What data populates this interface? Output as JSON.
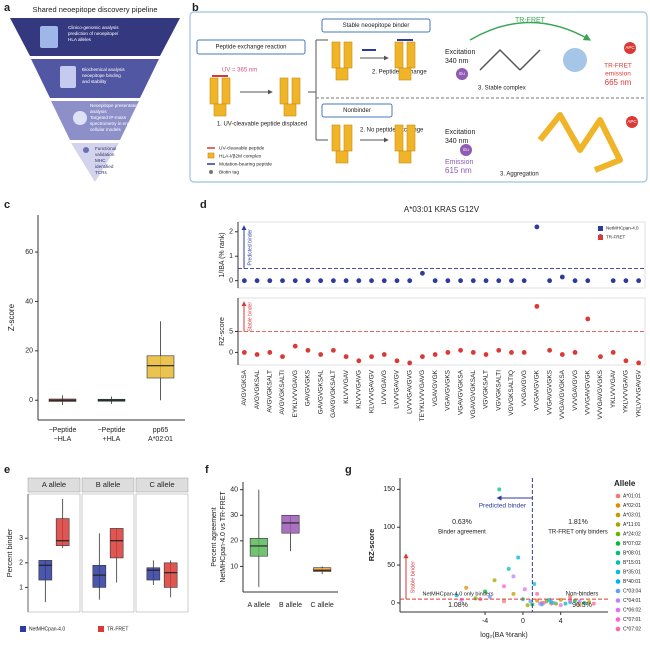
{
  "panel_labels": [
    "a",
    "b",
    "c",
    "d",
    "e",
    "f",
    "g"
  ],
  "pipeline": {
    "title": "Shared neoepitope discovery pipeline",
    "tiers": [
      [
        "Clinico-genomic analysis",
        "prediction of neoepitope/",
        "HLA alleles"
      ],
      [
        "Biochemical analysis",
        "neoepitope binding",
        "and stability"
      ],
      [
        "Neoepitope presentation",
        "analysis",
        "Targeted IP-mass",
        "spectrometry in engineered",
        "cellular models"
      ],
      [
        "Functional",
        "validation",
        "MHC",
        "identified",
        "TCRs"
      ]
    ]
  },
  "assay": {
    "exchange": "Peptide exchange reaction",
    "uv": "UV = 365 nm",
    "displaced": "1. UV-cleavable peptide displaced",
    "stable": "Stable neoepitope binder",
    "exchange_step": "2. Peptide exchange",
    "excitation": [
      "Excitation",
      "340 nm"
    ],
    "trfret": "TR-FRET",
    "emission665": [
      "TR-FRET",
      "emission",
      "665 nm"
    ],
    "complex": "3. Stable complex",
    "nonbinder": "Nonbinder",
    "no_exchange": "2. No peptide exchange",
    "emission615": [
      "Emission",
      "615 nm"
    ],
    "aggregation": "3. Aggregation",
    "apc": "APC",
    "eu": "Eu",
    "legend": [
      "UV-cleavable peptide",
      "HLA-I/β2M complex",
      "Mutation-bearing peptide",
      "Biotin tag"
    ]
  },
  "chart_data": [
    {
      "type": "box",
      "ylabel": "Z-score",
      "ylim": [
        -8,
        75
      ],
      "yticks": [
        0,
        20,
        40,
        60
      ],
      "categories": [
        [
          "−Peptide",
          "−HLA"
        ],
        [
          "−Peptide",
          "+HLA"
        ],
        [
          "pp65",
          "A*02:01"
        ]
      ],
      "boxes": [
        {
          "color": "#e04a4a",
          "min": -2,
          "q1": -0.5,
          "median": 0,
          "q3": 0.5,
          "max": 2
        },
        {
          "color": "#2a9d8f",
          "min": -1.5,
          "q1": -0.4,
          "median": 0,
          "q3": 0.4,
          "max": 1.5
        },
        {
          "color": "#e8b931",
          "min": 0,
          "q1": 9,
          "median": 14,
          "q3": 18,
          "max": 32
        }
      ]
    },
    {
      "type": "dot_strip",
      "title": "A*03:01 KRAS G12V",
      "categories": [
        "AVGVGKSA",
        "AVGVGKSAL",
        "AVGVGKSALT",
        "AVGVGKSALTI",
        "EYKLVVVGAVG",
        "GAVGVGKS",
        "GAVGVGKSAL",
        "GAVGVGKSALT",
        "KLVVVGAV",
        "KLVVVGAVG",
        "KLVVVGAVGV",
        "LVVVGAVG",
        "LVVVGAVGV",
        "LVVVGAVGVG",
        "TEYKLVVVGAVG",
        "VGAVGVGK",
        "VGAVGVGKS",
        "VGAVGVGKSA",
        "VGAVGVGKSAL",
        "VGVGKSALT",
        "VGVGKSALTI",
        "VGVGKSALTIQ",
        "VVGAVGVG",
        "VVGAVGVGK",
        "VVGAVGVGKS",
        "VVGAVGVGKSA",
        "VVVGAVGVG",
        "VVVGAVGVGK",
        "VVVGAVGVGKS",
        "YKLVVVGAV",
        "YKLVVVGAVG",
        "YKLVVVGAVGV"
      ],
      "series": [
        {
          "name": "NetMHCpan-4.0",
          "color": "#2d3a9e",
          "ylabel": "1/IBA (% rank)",
          "ylim": [
            -0.3,
            2.4
          ],
          "yticks": [
            0,
            1,
            2
          ],
          "threshold": 0.5,
          "threshold_label": "Predicted binder",
          "values": [
            0,
            0,
            0,
            0,
            0,
            0,
            0,
            0,
            0,
            0,
            0,
            0,
            0,
            0,
            0.3,
            0,
            0,
            0,
            0,
            0,
            0,
            0,
            0,
            2.2,
            0,
            0.15,
            0,
            0,
            1.8,
            0,
            0,
            0
          ]
        },
        {
          "name": "TR-FRET",
          "color": "#d93a35",
          "ylabel": "RZ-score",
          "ylim": [
            -3,
            13
          ],
          "yticks": [
            0,
            5
          ],
          "threshold": 5,
          "threshold_label": "Stable binder",
          "values": [
            0,
            -0.5,
            0,
            -1,
            1.5,
            0.5,
            -0.5,
            0.5,
            -1,
            -2,
            -1,
            -0.5,
            -2,
            -2.5,
            -1,
            -0.5,
            0,
            0.5,
            0,
            -0.5,
            0.5,
            0,
            0,
            11,
            0.5,
            -0.5,
            0,
            8,
            -1,
            0,
            -2,
            -2.5
          ]
        }
      ]
    },
    {
      "type": "facet_box",
      "ylabel": "Percent binder",
      "ylim": [
        0,
        4.8
      ],
      "yticks": [
        1,
        2,
        3
      ],
      "series": [
        {
          "name": "NetMHCpan-4.0",
          "color": "#2d3a9e"
        },
        {
          "name": "TR-FRET",
          "color": "#d93a35"
        }
      ],
      "facets": [
        {
          "title": "A allele",
          "boxes": [
            {
              "min": 0.4,
              "q1": 1.3,
              "median": 1.9,
              "q3": 2.1,
              "max": 2.1
            },
            {
              "min": 2.6,
              "q1": 2.7,
              "median": 2.9,
              "q3": 3.8,
              "max": 4.6
            }
          ]
        },
        {
          "title": "B allele",
          "boxes": [
            {
              "min": 0.5,
              "q1": 1.0,
              "median": 1.5,
              "q3": 1.9,
              "max": 3.2
            },
            {
              "min": 1.2,
              "q1": 2.2,
              "median": 2.9,
              "q3": 3.4,
              "max": 3.4
            }
          ]
        },
        {
          "title": "C allele",
          "boxes": [
            {
              "min": 1.1,
              "q1": 1.3,
              "median": 1.7,
              "q3": 1.8,
              "max": 2.1
            },
            {
              "min": 0.6,
              "q1": 1.0,
              "median": 1.6,
              "q3": 2.0,
              "max": 2.1
            }
          ]
        }
      ]
    },
    {
      "type": "box",
      "ylabel": [
        "Percent agreement",
        "NetMHCpan-4.0 vs TR-FRET"
      ],
      "ylim": [
        0,
        43
      ],
      "yticks": [
        10,
        20,
        30,
        40
      ],
      "categories": [
        "A allele",
        "B allele",
        "C allele"
      ],
      "boxes": [
        {
          "color": "#5cb85c",
          "min": 2,
          "q1": 14,
          "median": 18,
          "q3": 21,
          "max": 40
        },
        {
          "color": "#9b59b6",
          "min": 16,
          "q1": 23,
          "median": 27,
          "q3": 30,
          "max": 30
        },
        {
          "color": "#f0a030",
          "min": 7,
          "q1": 8,
          "median": 8.5,
          "q3": 9.5,
          "max": 10
        }
      ]
    },
    {
      "type": "scatter",
      "xlabel": "log₂(BA %rank)",
      "ylabel": "RZ-score",
      "xlim": [
        -13,
        9
      ],
      "ylim": [
        -12,
        165
      ],
      "xticks": [
        -4,
        0,
        4
      ],
      "yticks": [
        0,
        50,
        100,
        150
      ],
      "x_threshold": 1,
      "y_threshold": 5,
      "legend_title": "Allele",
      "annotations": {
        "predicted": "Predicted binder",
        "agree_pct": "0.63%",
        "agree": "Binder agreement",
        "trfret_pct": "1.81%",
        "trfret": "TR-FRET only binders",
        "stable": "Stable binder",
        "netmhc": "NetMHCpan-4.0 only binders",
        "netmhc_pct": "1.08%",
        "non": "Non-binders",
        "non_pct": "96.5%"
      },
      "series": [
        {
          "name": "A*01:01",
          "color": "#f8766d",
          "x": [
            -2,
            3,
            5
          ],
          "y": [
            2,
            -1,
            8
          ]
        },
        {
          "name": "A*02:01",
          "color": "#e58700",
          "x": [
            -6,
            1.5,
            6
          ],
          "y": [
            20,
            3,
            -2
          ]
        },
        {
          "name": "A*03:01",
          "color": "#c99800",
          "x": [
            -1,
            2,
            4
          ],
          "y": [
            12,
            0,
            4
          ]
        },
        {
          "name": "A*11:01",
          "color": "#a3a500",
          "x": [
            -3,
            0.5,
            7
          ],
          "y": [
            30,
            -3,
            1
          ]
        },
        {
          "name": "A*24:02",
          "color": "#6bb100",
          "x": [
            -5,
            2.5,
            3.5
          ],
          "y": [
            6,
            2,
            -1
          ]
        },
        {
          "name": "B*07:02",
          "color": "#00ba38",
          "x": [
            -4,
            1,
            5.5
          ],
          "y": [
            15,
            -2,
            3
          ]
        },
        {
          "name": "B*08:01",
          "color": "#00bf7d",
          "x": [
            -2.5,
            0,
            6.5
          ],
          "y": [
            150,
            5,
            0
          ]
        },
        {
          "name": "B*15:01",
          "color": "#00c0af",
          "x": [
            -1.5,
            3,
            4.5
          ],
          "y": [
            45,
            1,
            -1
          ]
        },
        {
          "name": "B*35:01",
          "color": "#00bcd8",
          "x": [
            -7,
            1.2,
            2
          ],
          "y": [
            10,
            25,
            -2
          ]
        },
        {
          "name": "B*40:01",
          "color": "#00b0f6",
          "x": [
            -0.5,
            2.8,
            5
          ],
          "y": [
            60,
            4,
            1
          ]
        },
        {
          "name": "C*03:04",
          "color": "#619cff",
          "x": [
            -3.5,
            0.8,
            3.2
          ],
          "y": [
            8,
            2,
            0
          ]
        },
        {
          "name": "C*04:01",
          "color": "#b983ff",
          "x": [
            -1,
            1.8,
            6
          ],
          "y": [
            35,
            -1,
            2
          ]
        },
        {
          "name": "C*06:02",
          "color": "#e76bf3",
          "x": [
            -6.5,
            0.2,
            4
          ],
          "y": [
            4,
            18,
            -3
          ]
        },
        {
          "name": "C*07:01",
          "color": "#fd61d1",
          "x": [
            -2,
            2.2,
            5
          ],
          "y": [
            22,
            0,
            3
          ]
        },
        {
          "name": "C*07:02",
          "color": "#ff67a4",
          "x": [
            -4.5,
            1.5,
            7.5
          ],
          "y": [
            5,
            12,
            -1
          ]
        }
      ]
    }
  ]
}
